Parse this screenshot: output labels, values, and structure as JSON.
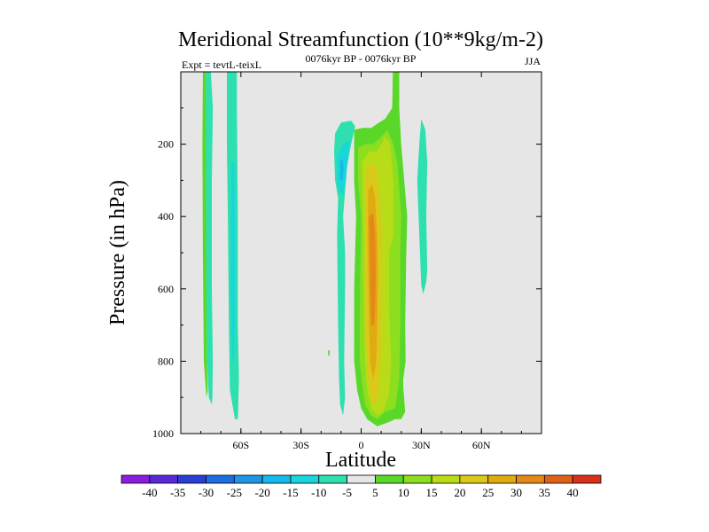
{
  "chart_data": {
    "type": "heatmap",
    "title": "Meridional Streamfunction (10**9kg/m-2)",
    "subtitle_left": "Expt = tevtL-teixL",
    "subtitle_center": "0076kyr BP - 0076kyr BP",
    "subtitle_right": "JJA",
    "xlabel": "Latitude",
    "ylabel": "Pressure (in hPa)",
    "xlim": [
      -90,
      90
    ],
    "ylim": [
      1000,
      0
    ],
    "xticks": [
      {
        "value": -60,
        "label": "60S"
      },
      {
        "value": -30,
        "label": "30S"
      },
      {
        "value": 0,
        "label": "0"
      },
      {
        "value": 30,
        "label": "30N"
      },
      {
        "value": 60,
        "label": "60N"
      }
    ],
    "yticks": [
      200,
      400,
      600,
      800,
      1000
    ],
    "colorbar": {
      "labels": [
        "-40",
        "-35",
        "-30",
        "-25",
        "-20",
        "-15",
        "-10",
        "-5",
        "5",
        "10",
        "15",
        "20",
        "25",
        "30",
        "35",
        "40"
      ],
      "colors": [
        "#8a1ee0",
        "#5a28d8",
        "#2c3ed6",
        "#1d6ee0",
        "#1f95e6",
        "#17b8ea",
        "#18d6da",
        "#2ee0b0",
        "#e6e6e6",
        "#5ad82a",
        "#8ede20",
        "#b8dc18",
        "#dac81a",
        "#e0aa10",
        "#e4881a",
        "#e0601a",
        "#d8321a"
      ],
      "neutral_color": "#e6e6e6"
    },
    "contours": [
      {
        "name": "neg5-band-72S",
        "color": "#2ee0b0",
        "points": [
          [
            -77.5,
            0
          ],
          [
            -75,
            0
          ],
          [
            -74,
            100
          ],
          [
            -74.5,
            300
          ],
          [
            -74.5,
            600
          ],
          [
            -74,
            800
          ],
          [
            -74.2,
            900
          ],
          [
            -74.5,
            920
          ],
          [
            -76,
            900
          ],
          [
            -77,
            800
          ],
          [
            -77.5,
            500
          ],
          [
            -77.8,
            200
          ]
        ]
      },
      {
        "name": "pos5-band-78S",
        "color": "#5ad82a",
        "points": [
          [
            -79,
            0
          ],
          [
            -77.5,
            0
          ],
          [
            -77.5,
            200
          ],
          [
            -77.3,
            500
          ],
          [
            -77,
            800
          ],
          [
            -76.5,
            880
          ],
          [
            -77.2,
            900
          ],
          [
            -78.5,
            800
          ],
          [
            -79,
            500
          ],
          [
            -79.2,
            200
          ]
        ]
      },
      {
        "name": "neg5-band-64S",
        "color": "#2ee0b0",
        "points": [
          [
            -67,
            0
          ],
          [
            -62,
            0
          ],
          [
            -62,
            100
          ],
          [
            -61.5,
            400
          ],
          [
            -61.5,
            700
          ],
          [
            -61,
            850
          ],
          [
            -61.5,
            960
          ],
          [
            -63,
            960
          ],
          [
            -65.5,
            880
          ],
          [
            -66,
            700
          ],
          [
            -66.5,
            400
          ],
          [
            -67,
            200
          ]
        ]
      },
      {
        "name": "neg10-core-64S",
        "color": "#18d6da",
        "points": [
          [
            -64.8,
            250
          ],
          [
            -63.2,
            250
          ],
          [
            -63,
            500
          ],
          [
            -63,
            700
          ],
          [
            -63.5,
            800
          ],
          [
            -64.5,
            800
          ],
          [
            -65,
            600
          ],
          [
            -65,
            400
          ]
        ]
      },
      {
        "name": "neg5-south-cell",
        "color": "#2ee0b0",
        "points": [
          [
            -13,
            170
          ],
          [
            -10,
            140
          ],
          [
            -5,
            135
          ],
          [
            -3,
            150
          ],
          [
            -5,
            200
          ],
          [
            -7,
            260
          ],
          [
            -9,
            400
          ],
          [
            -8,
            500
          ],
          [
            -8,
            600
          ],
          [
            -8.5,
            800
          ],
          [
            -8,
            900
          ],
          [
            -9,
            950
          ],
          [
            -10.5,
            920
          ],
          [
            -11,
            850
          ],
          [
            -11.5,
            700
          ],
          [
            -12,
            450
          ],
          [
            -11.5,
            350
          ],
          [
            -13,
            300
          ],
          [
            -13.5,
            220
          ]
        ]
      },
      {
        "name": "neg10-south-cell",
        "color": "#18d6da",
        "points": [
          [
            -12,
            230
          ],
          [
            -9,
            200
          ],
          [
            -6,
            190
          ],
          [
            -6.5,
            240
          ],
          [
            -8,
            300
          ],
          [
            -9,
            340
          ],
          [
            -11,
            330
          ],
          [
            -12,
            290
          ]
        ]
      },
      {
        "name": "neg15-south-cell",
        "color": "#17b8ea",
        "points": [
          [
            -10.5,
            250
          ],
          [
            -9.2,
            240
          ],
          [
            -8.7,
            270
          ],
          [
            -9.3,
            300
          ],
          [
            -10.5,
            300
          ]
        ]
      },
      {
        "name": "neg5-30N",
        "color": "#2ee0b0",
        "points": [
          [
            30,
            130
          ],
          [
            32,
            160
          ],
          [
            33,
            250
          ],
          [
            32.5,
            400
          ],
          [
            33,
            550
          ],
          [
            32.5,
            580
          ],
          [
            31,
            615
          ],
          [
            30,
            590
          ],
          [
            29,
            450
          ],
          [
            28,
            300
          ],
          [
            29,
            200
          ]
        ]
      },
      {
        "name": "pos5-speck",
        "color": "#5ad82a",
        "points": [
          [
            -16.5,
            770
          ],
          [
            -15.6,
            770
          ],
          [
            -15.8,
            785
          ],
          [
            -16.4,
            785
          ]
        ]
      },
      {
        "name": "pos5-main-cell",
        "color": "#5ad82a",
        "points": [
          [
            -3.5,
            160
          ],
          [
            1,
            155
          ],
          [
            5,
            155
          ],
          [
            9,
            140
          ],
          [
            12,
            130
          ],
          [
            15.5,
            100
          ],
          [
            16.5,
            0
          ],
          [
            19,
            0
          ],
          [
            19,
            100
          ],
          [
            20,
            200
          ],
          [
            23,
            400
          ],
          [
            22.5,
            500
          ],
          [
            22,
            700
          ],
          [
            22.2,
            800
          ],
          [
            21,
            850
          ],
          [
            21,
            870
          ],
          [
            22,
            940
          ],
          [
            20,
            960
          ],
          [
            17,
            960
          ],
          [
            13,
            970
          ],
          [
            8,
            980
          ],
          [
            3,
            960
          ],
          [
            0,
            930
          ],
          [
            -2,
            880
          ],
          [
            -3.5,
            800
          ],
          [
            -3.5,
            600
          ],
          [
            -2.5,
            400
          ],
          [
            -3.5,
            300
          ]
        ]
      },
      {
        "name": "pos10-main-cell",
        "color": "#8ede20",
        "points": [
          [
            -1.5,
            210
          ],
          [
            2,
            200
          ],
          [
            6,
            200
          ],
          [
            10,
            180
          ],
          [
            13,
            160
          ],
          [
            16,
            200
          ],
          [
            18,
            250
          ],
          [
            20,
            400
          ],
          [
            19.5,
            500
          ],
          [
            19.5,
            700
          ],
          [
            19,
            850
          ],
          [
            17,
            930
          ],
          [
            12,
            940
          ],
          [
            8,
            960
          ],
          [
            5,
            950
          ],
          [
            2,
            920
          ],
          [
            0.5,
            860
          ],
          [
            -0.7,
            800
          ],
          [
            -0.5,
            600
          ],
          [
            0,
            400
          ],
          [
            -1.5,
            300
          ]
        ]
      },
      {
        "name": "pos15-main-cell",
        "color": "#b8dc18",
        "points": [
          [
            0.5,
            250
          ],
          [
            4,
            220
          ],
          [
            8,
            220
          ],
          [
            12,
            180
          ],
          [
            14.5,
            200
          ],
          [
            16,
            300
          ],
          [
            16,
            450
          ],
          [
            14,
            500
          ],
          [
            14,
            650
          ],
          [
            15,
            800
          ],
          [
            14,
            890
          ],
          [
            11,
            940
          ],
          [
            8,
            950
          ],
          [
            5,
            930
          ],
          [
            3,
            880
          ],
          [
            2,
            800
          ],
          [
            1.5,
            650
          ],
          [
            1.3,
            500
          ],
          [
            1,
            380
          ]
        ]
      },
      {
        "name": "pos20-main-cell",
        "color": "#dac81a",
        "points": [
          [
            2.5,
            280
          ],
          [
            5,
            250
          ],
          [
            8,
            270
          ],
          [
            9.5,
            350
          ],
          [
            10.5,
            500
          ],
          [
            10,
            650
          ],
          [
            10,
            780
          ],
          [
            9,
            880
          ],
          [
            7.5,
            920
          ],
          [
            5,
            910
          ],
          [
            3.5,
            850
          ],
          [
            2.5,
            750
          ],
          [
            2,
            600
          ],
          [
            2,
            450
          ]
        ]
      },
      {
        "name": "pos25-main-cell",
        "color": "#e0aa10",
        "points": [
          [
            3.5,
            330
          ],
          [
            5.5,
            310
          ],
          [
            7,
            350
          ],
          [
            8,
            450
          ],
          [
            8.3,
            550
          ],
          [
            8,
            700
          ],
          [
            7.5,
            800
          ],
          [
            6,
            850
          ],
          [
            4.5,
            800
          ],
          [
            4,
            700
          ],
          [
            3.5,
            550
          ],
          [
            3.3,
            420
          ]
        ]
      },
      {
        "name": "pos30-main-cell",
        "color": "#e4881a",
        "points": [
          [
            4,
            400
          ],
          [
            6,
            390
          ],
          [
            7,
            450
          ],
          [
            7.3,
            550
          ],
          [
            7,
            650
          ],
          [
            6.5,
            700
          ],
          [
            5,
            700
          ],
          [
            4.5,
            600
          ],
          [
            4.3,
            500
          ]
        ]
      },
      {
        "name": "pos5-strip-16N",
        "color": "#5ad82a",
        "points": [
          [
            15.8,
            0
          ],
          [
            16.3,
            0
          ],
          [
            16.5,
            120
          ],
          [
            15.5,
            120
          ]
        ]
      }
    ]
  }
}
